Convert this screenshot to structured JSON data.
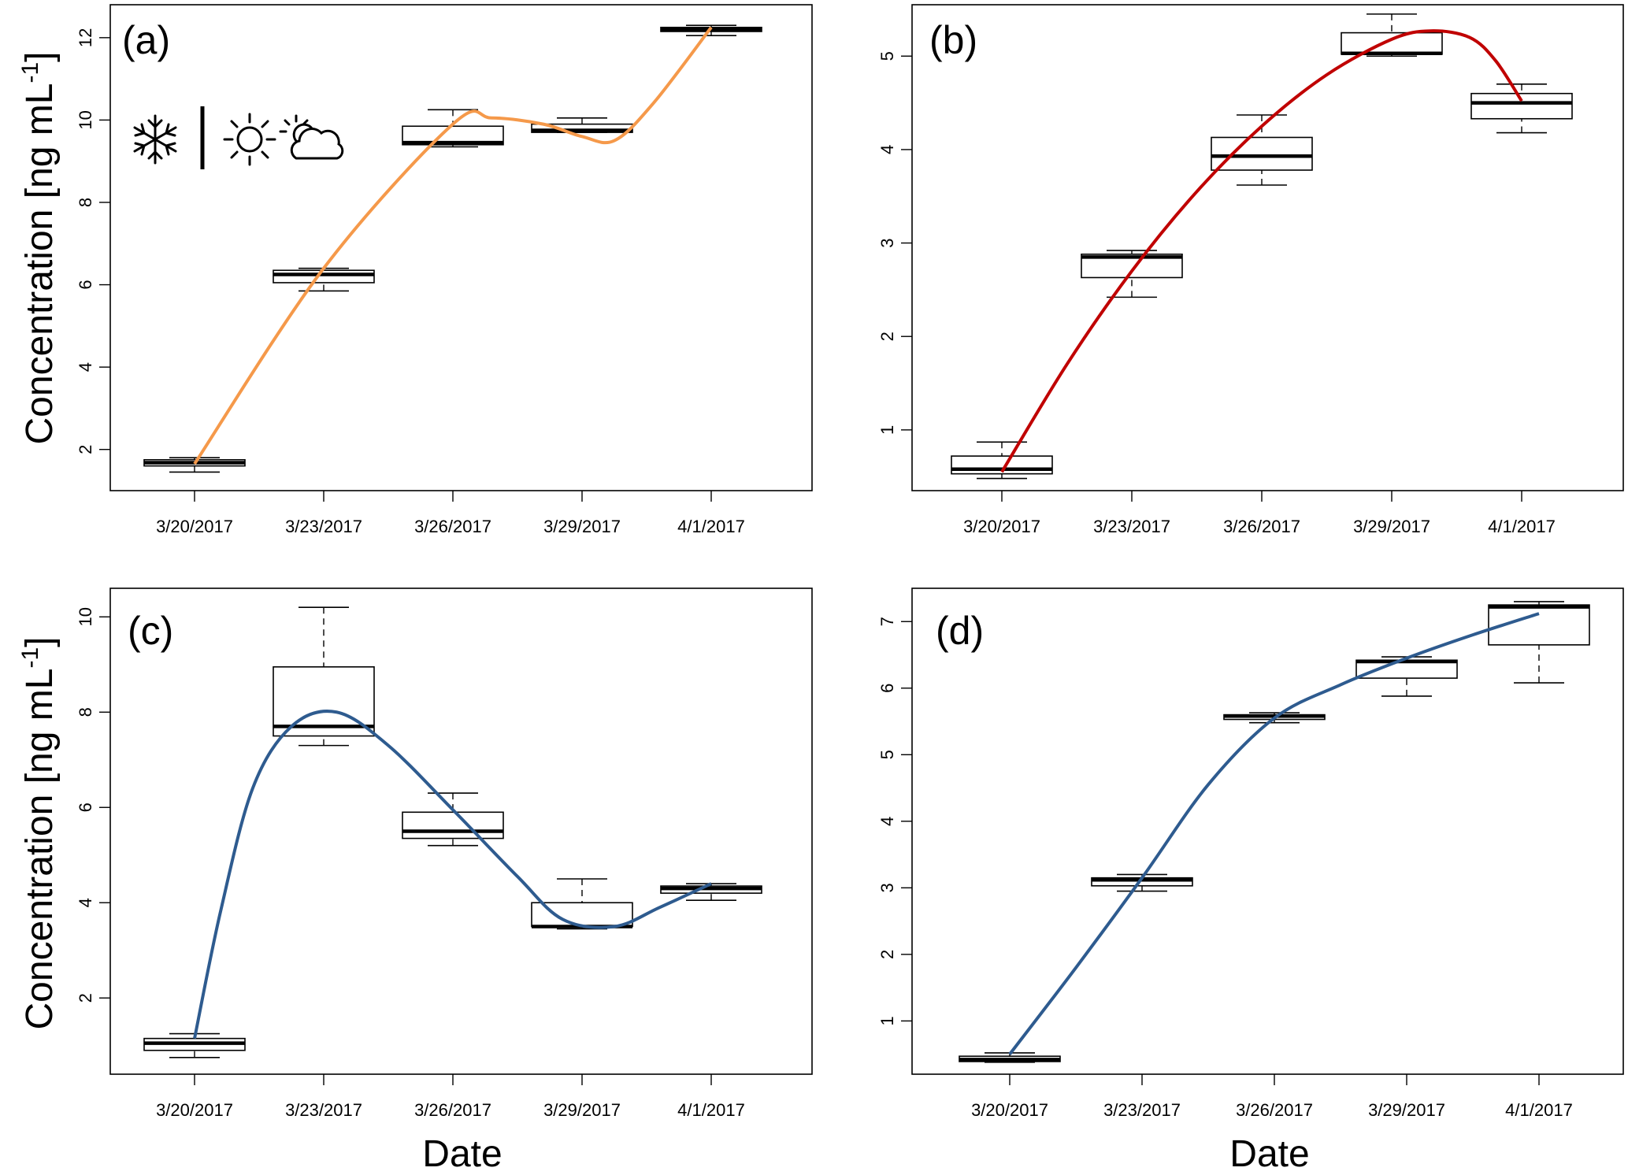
{
  "chart_data": [
    {
      "type": "box",
      "panel_label": "(a)",
      "ylabel_main": "Concentration [ng mL",
      "ylabel_sup": "-1",
      "ylabel_close": "]",
      "xlabel": "",
      "categories": [
        "3/20/2017",
        "3/23/2017",
        "3/26/2017",
        "3/29/2017",
        "4/1/2017"
      ],
      "ylim": [
        1.0,
        12.8
      ],
      "yticks": [
        2,
        4,
        6,
        8,
        10,
        12
      ],
      "boxes": [
        {
          "min": 1.45,
          "q1": 1.6,
          "median": 1.68,
          "q3": 1.75,
          "max": 1.8
        },
        {
          "min": 5.85,
          "q1": 6.05,
          "median": 6.25,
          "q3": 6.35,
          "max": 6.4
        },
        {
          "min": 9.35,
          "q1": 9.4,
          "median": 9.45,
          "q3": 9.85,
          "max": 10.25
        },
        {
          "min": 9.7,
          "q1": 9.7,
          "median": 9.75,
          "q3": 9.9,
          "max": 10.05
        },
        {
          "min": 12.05,
          "q1": 12.15,
          "median": 12.2,
          "q3": 12.25,
          "max": 12.3
        }
      ],
      "fit_color": "#F5994A",
      "fit_curve": [
        [
          0.0,
          1.65
        ],
        [
          1.0,
          6.4
        ],
        [
          2.0,
          9.9
        ],
        [
          2.3,
          10.05
        ],
        [
          2.7,
          9.9
        ],
        [
          3.0,
          9.6
        ],
        [
          3.25,
          9.5
        ],
        [
          3.55,
          10.4
        ],
        [
          4.0,
          12.25
        ]
      ],
      "weather_icons": [
        "snowflake-icon",
        "sun-icon",
        "partly-cloudy-icon"
      ]
    },
    {
      "type": "box",
      "panel_label": "(b)",
      "xlabel": "",
      "categories": [
        "3/20/2017",
        "3/23/2017",
        "3/26/2017",
        "3/29/2017",
        "4/1/2017"
      ],
      "ylim": [
        0.35,
        5.55
      ],
      "yticks": [
        1,
        2,
        3,
        4,
        5
      ],
      "boxes": [
        {
          "min": 0.48,
          "q1": 0.53,
          "median": 0.58,
          "q3": 0.72,
          "max": 0.87
        },
        {
          "min": 2.42,
          "q1": 2.63,
          "median": 2.85,
          "q3": 2.88,
          "max": 2.92
        },
        {
          "min": 3.62,
          "q1": 3.78,
          "median": 3.93,
          "q3": 4.13,
          "max": 4.37
        },
        {
          "min": 5.0,
          "q1": 5.02,
          "median": 5.03,
          "q3": 5.25,
          "max": 5.45
        },
        {
          "min": 4.18,
          "q1": 4.33,
          "median": 4.5,
          "q3": 4.6,
          "max": 4.7
        }
      ],
      "fit_color": "#C00000",
      "fit_curve": [
        [
          0.0,
          0.55
        ],
        [
          0.5,
          1.7
        ],
        [
          1.0,
          2.7
        ],
        [
          1.5,
          3.55
        ],
        [
          2.0,
          4.25
        ],
        [
          2.5,
          4.8
        ],
        [
          3.0,
          5.18
        ],
        [
          3.3,
          5.27
        ],
        [
          3.6,
          5.2
        ],
        [
          3.8,
          4.95
        ],
        [
          4.0,
          4.52
        ]
      ]
    },
    {
      "type": "box",
      "panel_label": "(c)",
      "ylabel_main": "Concentration [ng mL",
      "ylabel_sup": "-1",
      "ylabel_close": "]",
      "xlabel": "Date",
      "categories": [
        "3/20/2017",
        "3/23/2017",
        "3/26/2017",
        "3/29/2017",
        "4/1/2017"
      ],
      "ylim": [
        0.4,
        10.6
      ],
      "yticks": [
        2,
        4,
        6,
        8,
        10
      ],
      "boxes": [
        {
          "min": 0.75,
          "q1": 0.9,
          "median": 1.05,
          "q3": 1.15,
          "max": 1.25
        },
        {
          "min": 7.3,
          "q1": 7.5,
          "median": 7.7,
          "q3": 8.95,
          "max": 10.2
        },
        {
          "min": 5.2,
          "q1": 5.35,
          "median": 5.5,
          "q3": 5.9,
          "max": 6.3
        },
        {
          "min": 3.45,
          "q1": 3.5,
          "median": 3.5,
          "q3": 4.0,
          "max": 4.5
        },
        {
          "min": 4.05,
          "q1": 4.2,
          "median": 4.3,
          "q3": 4.35,
          "max": 4.4
        }
      ],
      "fit_color": "#2E5B8F",
      "fit_curve": [
        [
          0.0,
          1.15
        ],
        [
          0.2,
          3.8
        ],
        [
          0.45,
          6.4
        ],
        [
          0.75,
          7.7
        ],
        [
          1.1,
          8.0
        ],
        [
          1.5,
          7.3
        ],
        [
          2.0,
          5.95
        ],
        [
          2.5,
          4.55
        ],
        [
          2.85,
          3.65
        ],
        [
          3.25,
          3.5
        ],
        [
          3.6,
          3.9
        ],
        [
          4.0,
          4.4
        ]
      ]
    },
    {
      "type": "box",
      "panel_label": "(d)",
      "xlabel": "Date",
      "categories": [
        "3/20/2017",
        "3/23/2017",
        "3/26/2017",
        "3/29/2017",
        "4/1/2017"
      ],
      "ylim": [
        0.2,
        7.5
      ],
      "yticks": [
        1,
        2,
        3,
        4,
        5,
        6,
        7
      ],
      "boxes": [
        {
          "min": 0.38,
          "q1": 0.39,
          "median": 0.42,
          "q3": 0.47,
          "max": 0.52
        },
        {
          "min": 2.95,
          "q1": 3.03,
          "median": 3.12,
          "q3": 3.15,
          "max": 3.2
        },
        {
          "min": 5.48,
          "q1": 5.53,
          "median": 5.58,
          "q3": 5.6,
          "max": 5.63
        },
        {
          "min": 5.88,
          "q1": 6.15,
          "median": 6.4,
          "q3": 6.42,
          "max": 6.47
        },
        {
          "min": 6.08,
          "q1": 6.65,
          "median": 7.22,
          "q3": 7.25,
          "max": 7.3
        }
      ],
      "fit_color": "#2E5B8F",
      "fit_curve": [
        [
          0.0,
          0.5
        ],
        [
          0.5,
          1.8
        ],
        [
          1.0,
          3.15
        ],
        [
          1.5,
          4.55
        ],
        [
          2.0,
          5.55
        ],
        [
          2.5,
          6.05
        ],
        [
          3.0,
          6.45
        ],
        [
          3.5,
          6.8
        ],
        [
          4.0,
          7.12
        ]
      ]
    }
  ]
}
